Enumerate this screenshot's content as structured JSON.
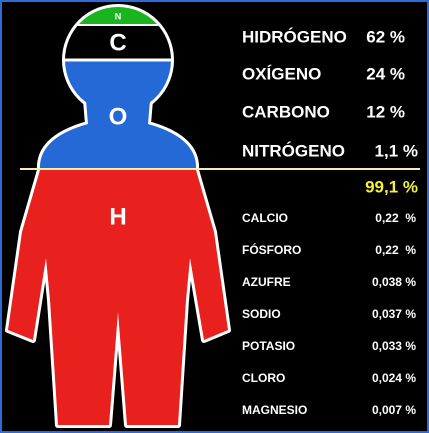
{
  "figure": {
    "labels": [
      "N",
      "C",
      "O",
      "H"
    ]
  },
  "major": [
    {
      "name": "HIDRÓGENO",
      "value": "62 %"
    },
    {
      "name": "OXÍGENO",
      "value": "24 %"
    },
    {
      "name": "CARBONO",
      "value": "12 %"
    },
    {
      "name": "NITRÓGENO",
      "value": "1,1 %"
    }
  ],
  "total": "99,1 %",
  "minor": [
    {
      "name": "CALCIO",
      "value": "0,22  %"
    },
    {
      "name": "FÓSFORO",
      "value": "0,22  %"
    },
    {
      "name": "AZUFRE",
      "value": "0,038 %"
    },
    {
      "name": "SODIO",
      "value": "0,037 %"
    },
    {
      "name": "POTASIO",
      "value": "0,033 %"
    },
    {
      "name": "CLORO",
      "value": "0,024 %"
    },
    {
      "name": "MAGNESIO",
      "value": "0,007 %"
    }
  ]
}
